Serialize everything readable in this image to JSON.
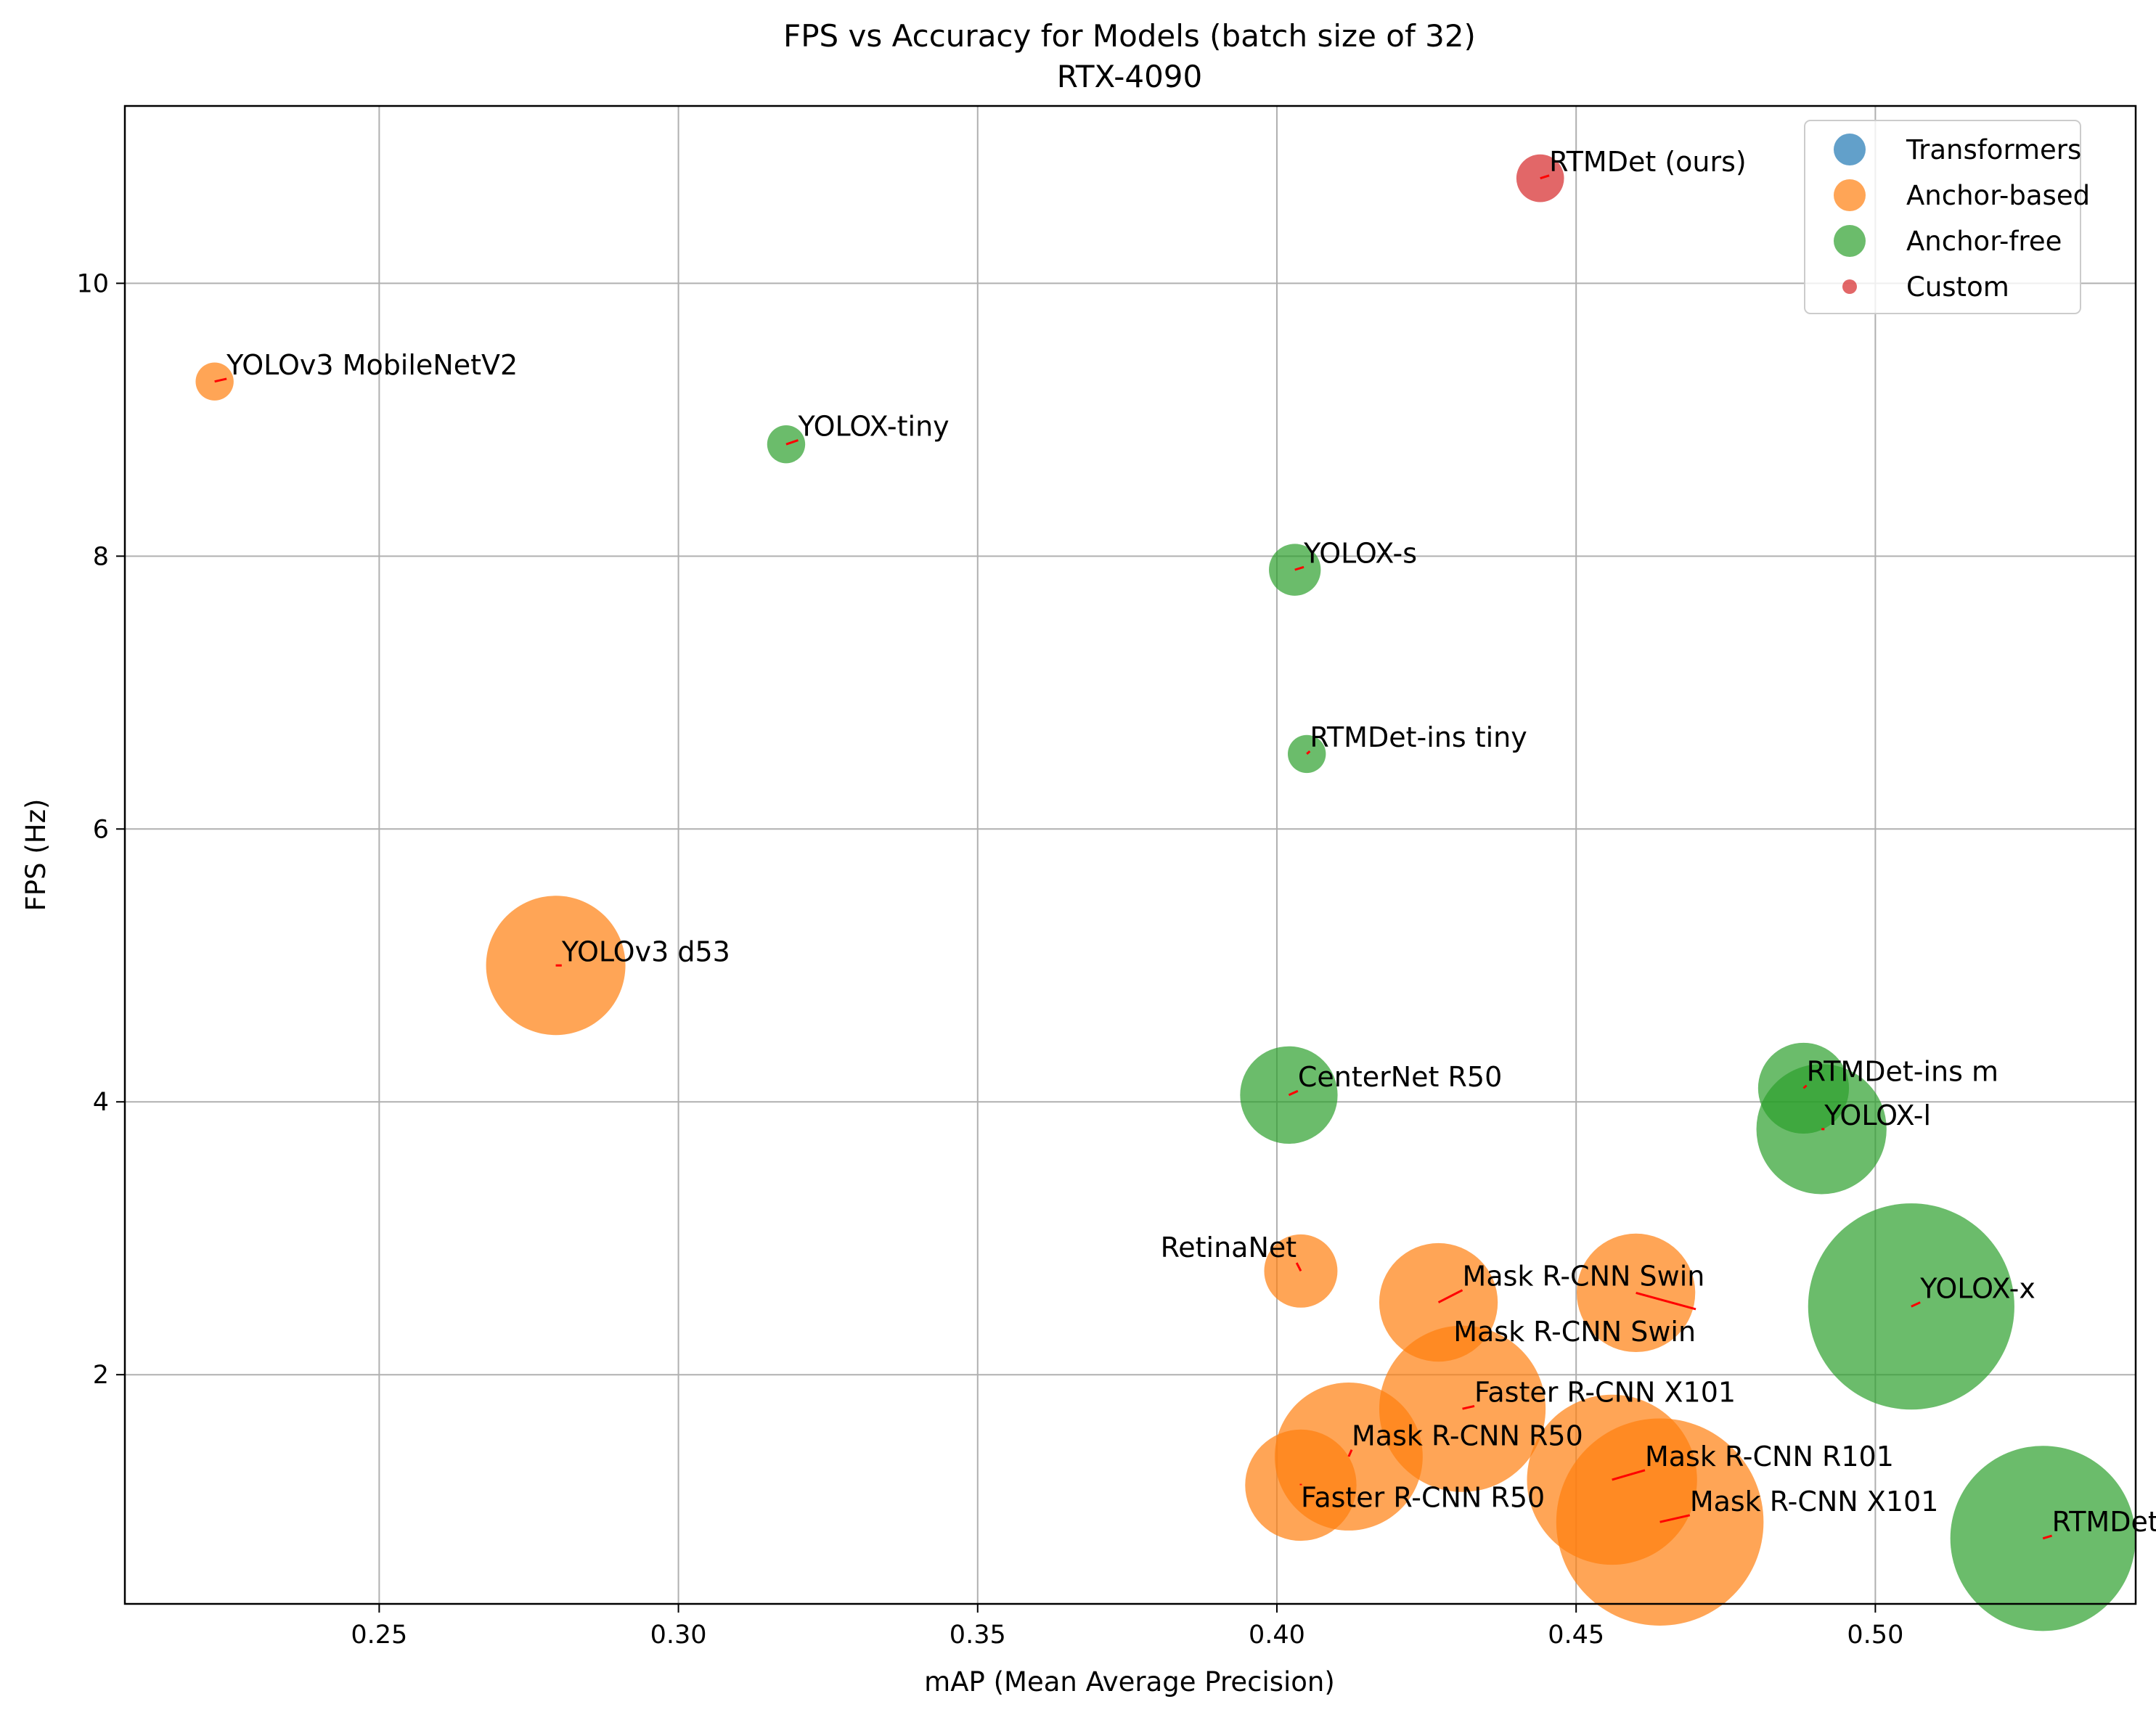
{
  "chart_data": {
    "type": "scatter",
    "title": "FPS vs Accuracy for Models (batch size of 32)",
    "subtitle": "RTX-4090",
    "xlabel": "mAP (Mean Average Precision)",
    "ylabel": "FPS (Hz)",
    "xlim": [
      0.2075,
      0.5435
    ],
    "ylim": [
      0.32,
      11.3
    ],
    "xticks": [
      0.25,
      0.3,
      0.35,
      0.4,
      0.45,
      0.5
    ],
    "xtick_labels": [
      "0.25",
      "0.30",
      "0.35",
      "0.40",
      "0.45",
      "0.50"
    ],
    "yticks": [
      2,
      4,
      6,
      8,
      10
    ],
    "ytick_labels": [
      "2",
      "4",
      "6",
      "8",
      "10"
    ],
    "grid": true,
    "legend_position": "top-right",
    "series": [
      {
        "name": "Transformers",
        "color": "#1f77b4"
      },
      {
        "name": "Anchor-based",
        "color": "#ff7f0e"
      },
      {
        "name": "Anchor-free",
        "color": "#2ca02c"
      },
      {
        "name": "Custom",
        "color": "#d62728"
      }
    ],
    "points": [
      {
        "label": "YOLOv3 MobileNetV2",
        "series": "Anchor-based",
        "x": 0.2225,
        "y": 9.28,
        "size": 3.5,
        "lx": 0.2245,
        "ly": 9.3,
        "label_at": "above-right"
      },
      {
        "label": "YOLOv3 d53",
        "series": "Anchor-based",
        "x": 0.2795,
        "y": 5.0,
        "size": 47,
        "lx": 0.2805,
        "ly": 5.0,
        "label_at": "above-right"
      },
      {
        "label": "RetinaNet",
        "series": "Anchor-based",
        "x": 0.404,
        "y": 2.76,
        "size": 13,
        "lx": 0.4033,
        "ly": 2.82,
        "label_at": "above-left"
      },
      {
        "label": "Mask R-CNN Swin",
        "series": "Anchor-based",
        "x": 0.427,
        "y": 2.53,
        "size": 34,
        "lx": 0.431,
        "ly": 2.62,
        "label_at": "above-right"
      },
      {
        "label": "Mask R-CNN Swin",
        "series": "Anchor-based",
        "x": 0.46,
        "y": 2.6,
        "size": 34,
        "lx": 0.47,
        "ly": 2.48,
        "label_at": "below-left"
      },
      {
        "label": "Faster R-CNN X101",
        "series": "Anchor-based",
        "x": 0.431,
        "y": 1.75,
        "size": 67,
        "lx": 0.433,
        "ly": 1.77,
        "label_at": "above-right"
      },
      {
        "label": "Mask R-CNN R50",
        "series": "Anchor-based",
        "x": 0.412,
        "y": 1.4,
        "size": 53,
        "lx": 0.4125,
        "ly": 1.45,
        "label_at": "above-right"
      },
      {
        "label": "Faster R-CNN R50",
        "series": "Anchor-based",
        "x": 0.404,
        "y": 1.19,
        "size": 30,
        "lx": 0.404,
        "ly": 1.2,
        "label_at": "below-right"
      },
      {
        "label": "Mask R-CNN R101",
        "series": "Anchor-based",
        "x": 0.456,
        "y": 1.23,
        "size": 70,
        "lx": 0.4615,
        "ly": 1.3,
        "label_at": "above-right"
      },
      {
        "label": "Mask R-CNN X101",
        "series": "Anchor-based",
        "x": 0.464,
        "y": 0.92,
        "size": 104,
        "lx": 0.469,
        "ly": 0.97,
        "label_at": "above-right"
      },
      {
        "label": "YOLOX-tiny",
        "series": "Anchor-free",
        "x": 0.318,
        "y": 8.82,
        "size": 3.5,
        "lx": 0.32,
        "ly": 8.85,
        "label_at": "above-right"
      },
      {
        "label": "YOLOX-s",
        "series": "Anchor-free",
        "x": 0.403,
        "y": 7.9,
        "size": 6.5,
        "lx": 0.4045,
        "ly": 7.92,
        "label_at": "above-right"
      },
      {
        "label": "RTMDet-ins tiny",
        "series": "Anchor-free",
        "x": 0.405,
        "y": 6.55,
        "size": 3.5,
        "lx": 0.4055,
        "ly": 6.57,
        "label_at": "above-right"
      },
      {
        "label": "CenterNet R50",
        "series": "Anchor-free",
        "x": 0.402,
        "y": 4.05,
        "size": 23,
        "lx": 0.4035,
        "ly": 4.08,
        "label_at": "above-right"
      },
      {
        "label": "RTMDet-ins m",
        "series": "Anchor-free",
        "x": 0.488,
        "y": 4.1,
        "size": 20,
        "lx": 0.4885,
        "ly": 4.12,
        "label_at": "above-right"
      },
      {
        "label": "YOLOX-l",
        "series": "Anchor-free",
        "x": 0.491,
        "y": 3.8,
        "size": 41,
        "lx": 0.4915,
        "ly": 3.8,
        "label_at": "above-right"
      },
      {
        "label": "YOLOX-x",
        "series": "Anchor-free",
        "x": 0.506,
        "y": 2.5,
        "size": 103,
        "lx": 0.5075,
        "ly": 2.53,
        "label_at": "above-right"
      },
      {
        "label": "RTMDet-x",
        "series": "Anchor-free",
        "x": 0.528,
        "y": 0.8,
        "size": 83,
        "lx": 0.5295,
        "ly": 0.82,
        "label_at": "above-right"
      },
      {
        "label": "RTMDet (ours)",
        "series": "Custom",
        "x": 0.444,
        "y": 10.77,
        "size": 5.5,
        "lx": 0.4455,
        "ly": 10.79,
        "label_at": "above-right"
      }
    ]
  }
}
